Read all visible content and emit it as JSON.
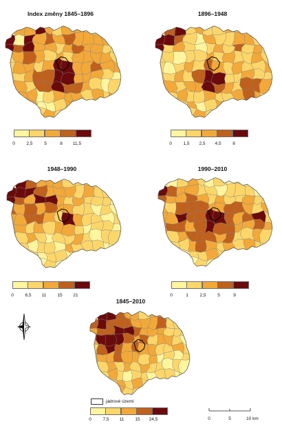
{
  "colors": [
    "#fff59e",
    "#fdd66a",
    "#f2a93a",
    "#bf611d",
    "#6b0a0c"
  ],
  "panels": [
    {
      "title": "Index změny 1845–1896",
      "breaks": [
        "0",
        "2,5",
        "5",
        "8",
        "11,5"
      ],
      "classes": [
        [
          null,
          2,
          2,
          4,
          2,
          1,
          2,
          2,
          1,
          1,
          null,
          null
        ],
        [
          4,
          0,
          4,
          2,
          3,
          2,
          3,
          2,
          2,
          2,
          2,
          null
        ],
        [
          4,
          3,
          4,
          2,
          2,
          1,
          2,
          3,
          2,
          2,
          1,
          1
        ],
        [
          1,
          2,
          3,
          2,
          1,
          2,
          1,
          2,
          2,
          2,
          2,
          1
        ],
        [
          1,
          2,
          2,
          1,
          2,
          4,
          4,
          2,
          2,
          3,
          2,
          2
        ],
        [
          1,
          1,
          2,
          3,
          3,
          4,
          4,
          2,
          2,
          2,
          1,
          0
        ],
        [
          2,
          2,
          1,
          3,
          3,
          4,
          3,
          3,
          2,
          1,
          0,
          1
        ],
        [
          null,
          2,
          2,
          0,
          1,
          2,
          2,
          2,
          1,
          2,
          1,
          2
        ],
        [
          null,
          null,
          2,
          0,
          0,
          1,
          2,
          1,
          1,
          null,
          null,
          null
        ],
        [
          null,
          null,
          null,
          1,
          2,
          1,
          null,
          null,
          null,
          null,
          null,
          null
        ]
      ]
    },
    {
      "title": "1896–1948",
      "breaks": [
        "0",
        "1,5",
        "2,5",
        "4,5",
        "8"
      ],
      "classes": [
        [
          null,
          3,
          4,
          1,
          2,
          1,
          1,
          2,
          1,
          1,
          null,
          null
        ],
        [
          4,
          4,
          3,
          1,
          0,
          2,
          1,
          1,
          2,
          2,
          1,
          null
        ],
        [
          4,
          1,
          2,
          1,
          0,
          1,
          2,
          1,
          3,
          1,
          2,
          1
        ],
        [
          1,
          1,
          0,
          1,
          1,
          2,
          1,
          2,
          1,
          1,
          2,
          1
        ],
        [
          1,
          0,
          1,
          2,
          1,
          3,
          2,
          1,
          2,
          1,
          1,
          2
        ],
        [
          1,
          1,
          2,
          1,
          3,
          4,
          4,
          1,
          1,
          2,
          1,
          1
        ],
        [
          1,
          2,
          1,
          2,
          2,
          4,
          3,
          2,
          1,
          3,
          3,
          2
        ],
        [
          null,
          1,
          2,
          1,
          1,
          2,
          1,
          1,
          2,
          3,
          2,
          1
        ],
        [
          null,
          null,
          1,
          2,
          0,
          1,
          2,
          1,
          1,
          null,
          null,
          null
        ],
        [
          null,
          null,
          null,
          1,
          2,
          1,
          null,
          null,
          null,
          null,
          null,
          null
        ]
      ]
    },
    {
      "title": "1948–1990",
      "breaks": [
        "0",
        "6,5",
        "11",
        "15",
        "21"
      ],
      "classes": [
        [
          null,
          4,
          3,
          2,
          2,
          2,
          1,
          1,
          1,
          1,
          null,
          null
        ],
        [
          4,
          4,
          4,
          3,
          2,
          2,
          2,
          1,
          2,
          1,
          1,
          null
        ],
        [
          4,
          3,
          2,
          4,
          4,
          2,
          1,
          2,
          1,
          1,
          1,
          0
        ],
        [
          3,
          2,
          3,
          2,
          3,
          2,
          2,
          1,
          1,
          0,
          1,
          0
        ],
        [
          2,
          2,
          3,
          3,
          2,
          1,
          4,
          2,
          1,
          1,
          0,
          1
        ],
        [
          1,
          2,
          1,
          2,
          1,
          2,
          2,
          1,
          0,
          1,
          1,
          0
        ],
        [
          2,
          1,
          2,
          1,
          0,
          1,
          1,
          2,
          1,
          0,
          1,
          1
        ],
        [
          null,
          1,
          0,
          1,
          1,
          0,
          2,
          1,
          1,
          1,
          0,
          0
        ],
        [
          null,
          null,
          1,
          0,
          1,
          1,
          0,
          1,
          0,
          null,
          null,
          null
        ],
        [
          null,
          null,
          null,
          0,
          1,
          0,
          null,
          null,
          null,
          null,
          null,
          null
        ]
      ]
    },
    {
      "title": "1990–2010",
      "breaks": [
        "0",
        "1",
        "2,5",
        "5",
        "9"
      ],
      "classes": [
        [
          null,
          0,
          1,
          2,
          1,
          0,
          1,
          0,
          1,
          0,
          null,
          null
        ],
        [
          4,
          3,
          2,
          2,
          1,
          1,
          0,
          1,
          1,
          1,
          0,
          null
        ],
        [
          3,
          2,
          2,
          3,
          2,
          1,
          2,
          1,
          1,
          2,
          1,
          1
        ],
        [
          2,
          1,
          3,
          3,
          3,
          2,
          2,
          3,
          3,
          2,
          1,
          2
        ],
        [
          2,
          2,
          4,
          3,
          3,
          4,
          4,
          3,
          2,
          3,
          4,
          1
        ],
        [
          1,
          3,
          3,
          2,
          3,
          4,
          3,
          3,
          2,
          2,
          3,
          2
        ],
        [
          2,
          1,
          2,
          3,
          3,
          3,
          2,
          3,
          1,
          1,
          2,
          1
        ],
        [
          null,
          1,
          1,
          2,
          3,
          2,
          1,
          2,
          1,
          2,
          1,
          1
        ],
        [
          null,
          null,
          0,
          1,
          1,
          2,
          1,
          0,
          1,
          null,
          null,
          null
        ],
        [
          null,
          null,
          null,
          0,
          1,
          0,
          null,
          null,
          null,
          null,
          null,
          null
        ]
      ]
    },
    {
      "title": "1845–2010",
      "breaks": [
        "0",
        "7,5",
        "11",
        "15",
        "24,5"
      ],
      "classes": [
        [
          null,
          4,
          4,
          3,
          2,
          2,
          1,
          2,
          2,
          1,
          null,
          null
        ],
        [
          3,
          4,
          3,
          3,
          3,
          2,
          2,
          2,
          3,
          1,
          1,
          null
        ],
        [
          2,
          3,
          3,
          4,
          4,
          3,
          2,
          2,
          2,
          1,
          1,
          1
        ],
        [
          2,
          4,
          4,
          4,
          3,
          2,
          3,
          1,
          2,
          2,
          1,
          0
        ],
        [
          1,
          3,
          4,
          3,
          2,
          3,
          2,
          2,
          1,
          1,
          2,
          1
        ],
        [
          1,
          2,
          2,
          3,
          2,
          2,
          1,
          2,
          0,
          1,
          0,
          1
        ],
        [
          2,
          1,
          2,
          1,
          2,
          1,
          2,
          1,
          1,
          0,
          1,
          0
        ],
        [
          null,
          1,
          2,
          1,
          0,
          1,
          1,
          0,
          1,
          1,
          0,
          1
        ],
        [
          null,
          null,
          1,
          2,
          1,
          2,
          1,
          1,
          0,
          null,
          null,
          null
        ],
        [
          null,
          null,
          null,
          2,
          1,
          1,
          null,
          null,
          null,
          null,
          null,
          null
        ]
      ]
    }
  ],
  "core_legend": {
    "label": "jádrové území"
  },
  "north_arrow": {
    "icon": "north-arrow-icon"
  },
  "scale_bar": {
    "labels": [
      "0",
      "5",
      "10 km"
    ]
  }
}
